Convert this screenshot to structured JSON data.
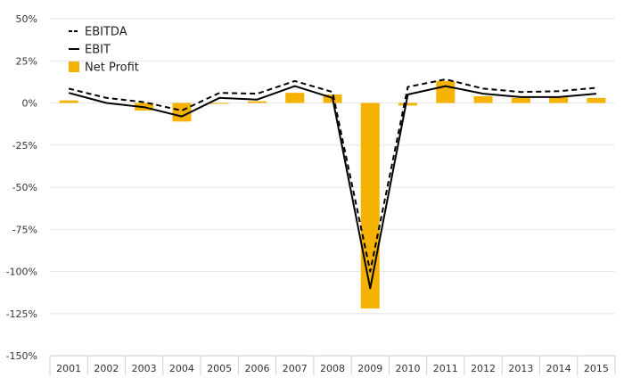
{
  "chart_data": {
    "type": "bar",
    "categories": [
      "2001",
      "2002",
      "2003",
      "2004",
      "2005",
      "2006",
      "2007",
      "2008",
      "2009",
      "2010",
      "2011",
      "2012",
      "2013",
      "2014",
      "2015"
    ],
    "series": [
      {
        "name": "EBITDA",
        "type": "line",
        "style": "dashed",
        "color": "#000000",
        "values": [
          8.5,
          3,
          0.5,
          -4.5,
          6,
          5.5,
          13,
          6.5,
          -100,
          9.5,
          14,
          8.5,
          6.5,
          7,
          9
        ]
      },
      {
        "name": "EBIT",
        "type": "line",
        "style": "solid",
        "color": "#000000",
        "values": [
          6,
          0,
          -2.5,
          -8,
          3,
          2,
          10,
          3,
          -110,
          5,
          10,
          5.5,
          3.5,
          3.5,
          5.5
        ]
      },
      {
        "name": "Net Profit",
        "type": "bar",
        "color": "#F5B200",
        "values": [
          1.5,
          0,
          -4.5,
          -11,
          -0.5,
          1,
          6,
          5,
          -122,
          -1.5,
          13,
          4,
          3,
          3.5,
          3
        ]
      }
    ],
    "yticks": [
      50,
      25,
      0,
      -25,
      -50,
      -75,
      -100,
      -125,
      -150
    ],
    "ytick_labels": [
      "50%",
      "25%",
      "0%",
      "-25%",
      "-50%",
      "-75%",
      "-100%",
      "-125%",
      "-150%"
    ],
    "ylim": [
      -150,
      50
    ],
    "grid": true,
    "legend_position": "top-left"
  }
}
